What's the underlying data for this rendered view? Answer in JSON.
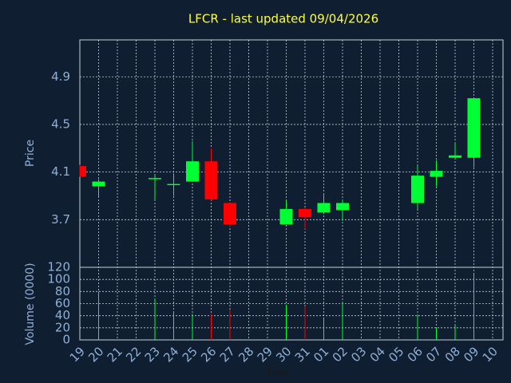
{
  "chart_data": {
    "type": "candlestick",
    "title": "LFCR - last updated 09/04/2026",
    "ylabel": "Price",
    "xlabel": "Day",
    "categories": [
      "19",
      "20",
      "21",
      "22",
      "23",
      "24",
      "25",
      "26",
      "27",
      "28",
      "29",
      "30",
      "31",
      "01",
      "02",
      "03",
      "04",
      "05",
      "06",
      "07",
      "08",
      "09",
      "10"
    ],
    "open": [
      4.15,
      3.98,
      null,
      null,
      4.04,
      3.99,
      4.02,
      4.19,
      3.84,
      null,
      null,
      3.66,
      3.79,
      3.76,
      3.78,
      null,
      null,
      null,
      3.84,
      4.06,
      4.22,
      4.22,
      null
    ],
    "high": [
      4.16,
      4.04,
      null,
      null,
      4.08,
      4.09,
      4.36,
      4.3,
      3.84,
      null,
      null,
      3.86,
      3.8,
      3.92,
      3.87,
      null,
      null,
      null,
      4.15,
      4.2,
      4.35,
      4.72,
      null
    ],
    "low": [
      4.06,
      3.89,
      null,
      null,
      3.87,
      3.9,
      4.02,
      3.86,
      3.64,
      null,
      null,
      3.66,
      3.62,
      3.76,
      3.69,
      null,
      null,
      null,
      3.79,
      3.98,
      4.21,
      4.14,
      null
    ],
    "close": [
      4.06,
      4.02,
      null,
      null,
      4.05,
      4.0,
      4.19,
      3.87,
      3.66,
      null,
      null,
      3.79,
      3.72,
      3.84,
      3.84,
      null,
      null,
      null,
      4.07,
      4.11,
      4.24,
      4.72,
      null
    ],
    "ylim": [
      3.3,
      5.21
    ],
    "yticks": [
      3.7,
      4.1,
      4.5,
      4.9
    ],
    "grid": true,
    "up_color": "#00ff33",
    "down_color": "#ff0000",
    "volume": {
      "ylabel": "Volume (0000)",
      "values": [
        null,
        80,
        null,
        null,
        68,
        47,
        43,
        43,
        50,
        null,
        null,
        58,
        56,
        35,
        62,
        null,
        null,
        null,
        42,
        20,
        25,
        110,
        null
      ],
      "ylim": [
        0,
        120
      ],
      "yticks": [
        0,
        20,
        40,
        60,
        80,
        100,
        120
      ]
    }
  }
}
